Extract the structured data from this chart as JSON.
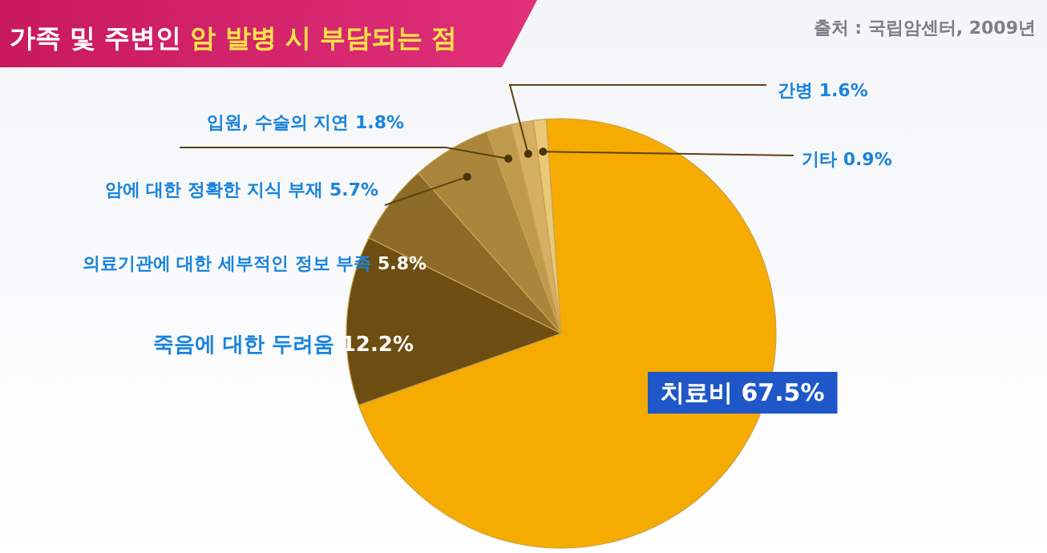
{
  "chart_data": {
    "type": "pie",
    "title": "가족 및 주변인 암 발병 시 부담되는 점",
    "categories": [
      "치료비",
      "죽음에 대한 두려움",
      "의료기관에 대한 세부적인 정보 부족",
      "암에 대한 정확한 지식 부재",
      "입원, 수술의 지연",
      "간병",
      "기타"
    ],
    "values": [
      67.5,
      12.2,
      5.8,
      5.7,
      1.8,
      1.6,
      0.9
    ],
    "colors": [
      "#f6ab00",
      "#6e4d12",
      "#8c6a28",
      "#a9863c",
      "#c09a4c",
      "#d5b064",
      "#e9c878"
    ],
    "value_labels": [
      "67.5%",
      "12.2%",
      "5.8%",
      "5.7%",
      "1.8%",
      "1.6%",
      "0.9%"
    ],
    "annotations": [
      "출처 : 국립암센터, 2009년"
    ]
  }
}
